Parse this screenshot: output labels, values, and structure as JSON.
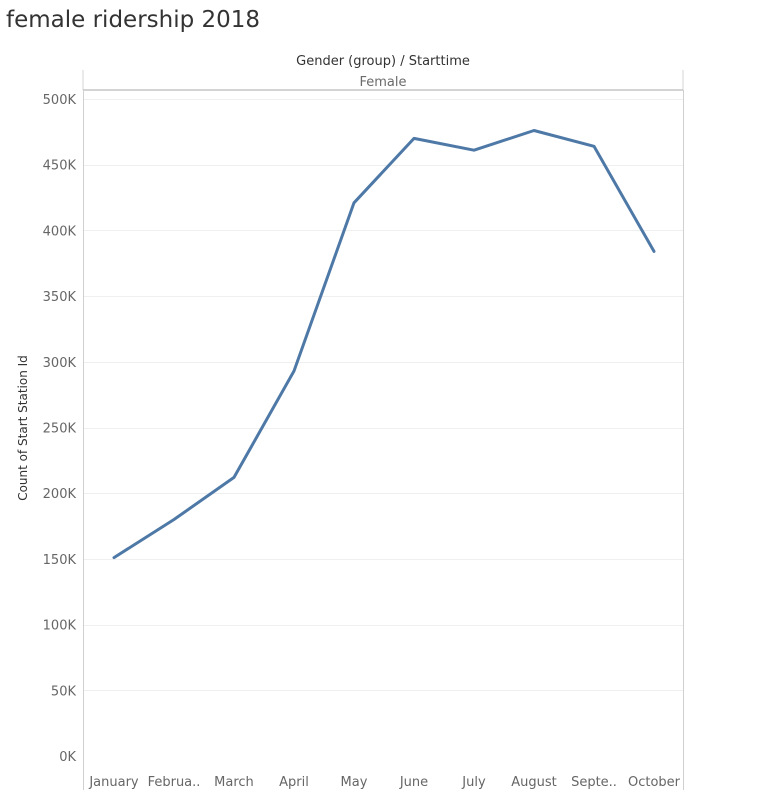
{
  "title": "female ridership 2018",
  "chart_data": {
    "type": "line",
    "column_header": "Gender (group) / Starttime",
    "pane_header": "Female",
    "ylabel": "Count of Start Station Id",
    "categories": [
      "January",
      "Februa..",
      "March",
      "April",
      "May",
      "June",
      "July",
      "August",
      "Septe..",
      "October"
    ],
    "yticks": [
      0,
      50000,
      100000,
      150000,
      200000,
      250000,
      300000,
      350000,
      400000,
      450000,
      500000
    ],
    "ytick_labels": [
      "0K",
      "50K",
      "100K",
      "150K",
      "200K",
      "250K",
      "300K",
      "350K",
      "400K",
      "450K",
      "500K"
    ],
    "ylim": [
      0,
      500000
    ],
    "grid": true,
    "series": [
      {
        "values": [
          151000,
          180000,
          212000,
          293000,
          421000,
          470000,
          461000,
          476000,
          464000,
          384000
        ],
        "color": "#4e79a7"
      }
    ]
  }
}
